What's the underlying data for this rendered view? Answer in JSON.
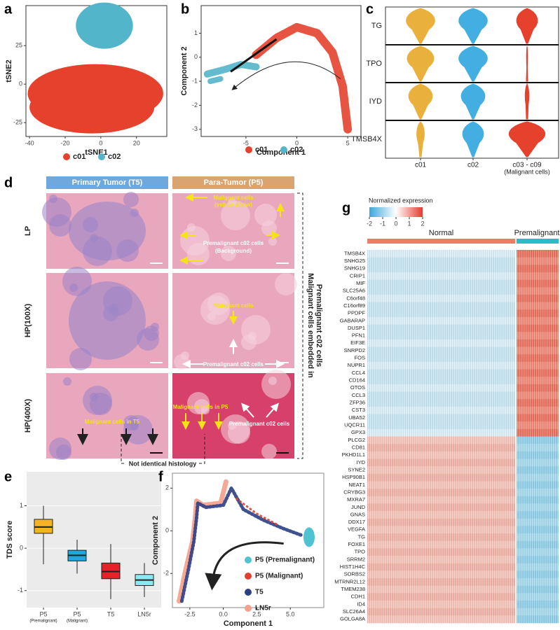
{
  "panel_a": {
    "label": "a",
    "xlabel": "tSNE1",
    "ylabel": "tSNE2",
    "xlim": [
      -42,
      37
    ],
    "ylim": [
      -34,
      51
    ],
    "xticks": [
      -40,
      -20,
      0,
      20
    ],
    "yticks": [
      -25,
      0,
      25
    ],
    "series": [
      {
        "name": "c01",
        "color": "#e5412d"
      },
      {
        "name": "c02",
        "color": "#52b5c9"
      }
    ]
  },
  "panel_b": {
    "label": "b",
    "xlabel": "Component 1",
    "ylabel": "Component 2",
    "xlim": [
      -9.4,
      6.3
    ],
    "ylim": [
      -3.3,
      2.15
    ],
    "xticks": [
      -5,
      0,
      5
    ],
    "yticks": [
      1,
      0,
      -1,
      -2,
      -3
    ],
    "series": [
      {
        "name": "c01",
        "color": "#e5412d"
      },
      {
        "name": "c02",
        "color": "#52b5c9"
      }
    ]
  },
  "panel_c": {
    "label": "c",
    "genes": [
      "TG",
      "TPO",
      "IYD",
      "TMSB4X"
    ],
    "groups": [
      {
        "name": "c01",
        "color": "#eab03c"
      },
      {
        "name": "c02",
        "color": "#43aee2"
      },
      {
        "name": "c03 - c09",
        "subtitle": "(Malignant cells)",
        "color": "#e5412d"
      }
    ]
  },
  "panel_d": {
    "label": "d",
    "headers": [
      "Primary Tumor (T5)",
      "Para-Tumor (P5)"
    ],
    "rows": [
      "LP",
      "HP(100X)",
      "HP(400X)"
    ],
    "annotations": [
      "Malignant cells",
      "(yellow arrow)",
      "Premalignant c02 cells",
      "(Background)",
      "Malignant cells",
      "Premalignant c02 cells",
      "Malignant cells in T5",
      "Malignant cells in P5",
      "Premalignant c02 cells"
    ],
    "bracket_text": [
      "Malignant cells embedded in",
      "Premalignant c02 cells"
    ],
    "note": "Not identical histology"
  },
  "panel_e": {
    "label": "e",
    "ylabel": "TDS score",
    "ylim": [
      -1.4,
      1.8
    ],
    "yticks": [
      -1,
      0,
      1
    ],
    "boxes": [
      {
        "name": "P5",
        "subtitle": "(Premalignant)",
        "color": "#f5b324",
        "min": -0.38,
        "q1": 0.35,
        "median": 0.5,
        "q3": 0.68,
        "max": 1.0
      },
      {
        "name": "P5",
        "subtitle": "(Malignant)",
        "color": "#1ba9e0",
        "min": -0.6,
        "q1": -0.3,
        "median": -0.17,
        "q3": -0.05,
        "max": 0.2
      },
      {
        "name": "T5",
        "color": "#e8202a",
        "min": -1.2,
        "q1": -0.72,
        "median": -0.55,
        "q3": -0.35,
        "max": 0.1
      },
      {
        "name": "LN5r",
        "color": "#8ee8f3",
        "min": -1.15,
        "q1": -0.88,
        "median": -0.75,
        "q3": -0.62,
        "max": -0.35
      }
    ]
  },
  "panel_f": {
    "label": "f",
    "xlabel": "Component 1",
    "ylabel": "Component 2",
    "xlim": [
      -3.8,
      7.5
    ],
    "ylim": [
      -3.6,
      2.7
    ],
    "xticks": [
      {
        "value": -2.5,
        "label": "-2.5"
      },
      {
        "value": 0,
        "label": "0.0"
      },
      {
        "value": 2.5,
        "label": "2.5"
      },
      {
        "value": 5,
        "label": "5.0"
      }
    ],
    "yticks": [
      2,
      0,
      -2
    ],
    "series": [
      {
        "name": "P5 (Premalignant)",
        "color": "#4fc3d0"
      },
      {
        "name": "P5 (Malignant)",
        "color": "#e0412e"
      },
      {
        "name": "T5",
        "color": "#2c3e84"
      },
      {
        "name": "LN5r",
        "color": "#f4a08a"
      }
    ]
  },
  "panel_g": {
    "label": "g",
    "title": "Normalized expression",
    "colorbar_ticks": [
      -2,
      -1,
      0,
      1,
      2
    ],
    "groups": [
      {
        "name": "Normal",
        "color": "#f07a6a"
      },
      {
        "name": "Premalignant",
        "color": "#2bbcc4"
      }
    ],
    "genes": [
      "TMSB4X",
      "SNHG25",
      "SNHG19",
      "CRIP1",
      "MIF",
      "SLC25A6",
      "C6orf48",
      "C16orf89",
      "PPDPF",
      "GABARAP",
      "DUSP1",
      "PFN1",
      "EIF3E",
      "SNRPD2",
      "FOS",
      "NUPR1",
      "CCL4",
      "CD164",
      "OTOS",
      "CCL3",
      "ZFP36",
      "CST3",
      "UBA52",
      "UQCR11",
      "GPX3",
      "PLCG2",
      "CD81",
      "PKHD1L1",
      "IYD",
      "SYNE2",
      "HSP90B1",
      "NEAT1",
      "CRYBG3",
      "MXRA7",
      "JUND",
      "GNAS",
      "DDX17",
      "VEGFA",
      "TG",
      "FOXE1",
      "TPO",
      "SRRM2",
      "HIST1H4C",
      "SORBS2",
      "MTRNR2L12",
      "TMEM238",
      "CDH1",
      "ID4",
      "SLC26A4",
      "GOLGA8A"
    ]
  }
}
